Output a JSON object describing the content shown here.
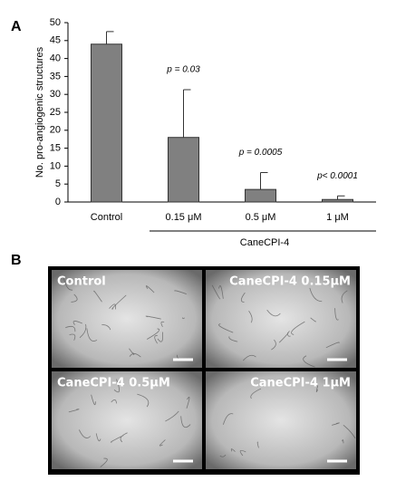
{
  "panel_a_label": "A",
  "panel_b_label": "B",
  "chart_data": {
    "type": "bar",
    "y_label": "No. pro-angiogenic structures",
    "categories": [
      "Control",
      "0.15 μM",
      "0.5 μM",
      "1 μM"
    ],
    "values": [
      44,
      18,
      3.5,
      0.7
    ],
    "errors": [
      3.5,
      13.3,
      4.7,
      1.0
    ],
    "color": "#808080",
    "annotations": [
      null,
      "p = 0.03",
      "p = 0.0005",
      "p< 0.0001"
    ],
    "group_label": "CaneCPI-4",
    "ylim": [
      0,
      50
    ],
    "yticks": [
      0,
      5,
      10,
      15,
      20,
      25,
      30,
      35,
      40,
      45,
      50
    ],
    "grid": false
  },
  "images": [
    "Control",
    "CaneCPI-4 0.15μM",
    "CaneCPI-4 0.5μM",
    "CaneCPI-4 1μM"
  ]
}
